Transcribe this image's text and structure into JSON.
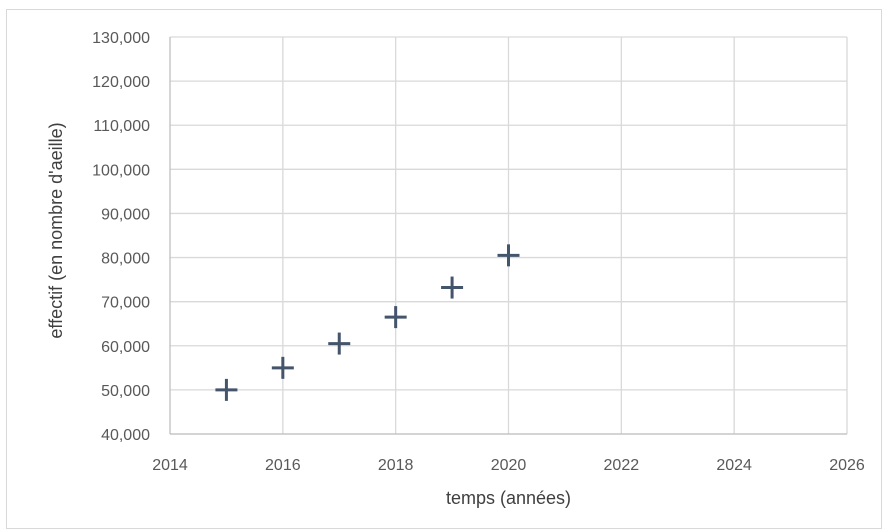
{
  "chart_data": {
    "type": "scatter",
    "title": "",
    "xlabel": "temps (années)",
    "ylabel": "effectif (en nombre d'aeille)",
    "xlim": [
      2014,
      2026
    ],
    "ylim": [
      40000,
      130000
    ],
    "x_ticks": [
      2014,
      2016,
      2018,
      2020,
      2022,
      2024,
      2026
    ],
    "y_ticks": [
      40000,
      50000,
      60000,
      70000,
      80000,
      90000,
      100000,
      110000,
      120000,
      130000
    ],
    "x_tick_labels": [
      "2014",
      "2016",
      "2018",
      "2020",
      "2022",
      "2024",
      "2026"
    ],
    "y_tick_labels": [
      "40,000",
      "50,000",
      "60,000",
      "70,000",
      "80,000",
      "90,000",
      "100,000",
      "110,000",
      "120,000",
      "130,000"
    ],
    "grid": true,
    "legend": "none",
    "marker": "plus",
    "series": [
      {
        "x": [
          2015,
          2016,
          2017,
          2018,
          2019,
          2020
        ],
        "y": [
          50000,
          55000,
          60500,
          66500,
          73200,
          80500
        ]
      }
    ],
    "colors": {
      "marker": "#44546a",
      "grid": "#d9d9d9",
      "tick_text": "#595959",
      "axis_title": "#404040"
    }
  }
}
